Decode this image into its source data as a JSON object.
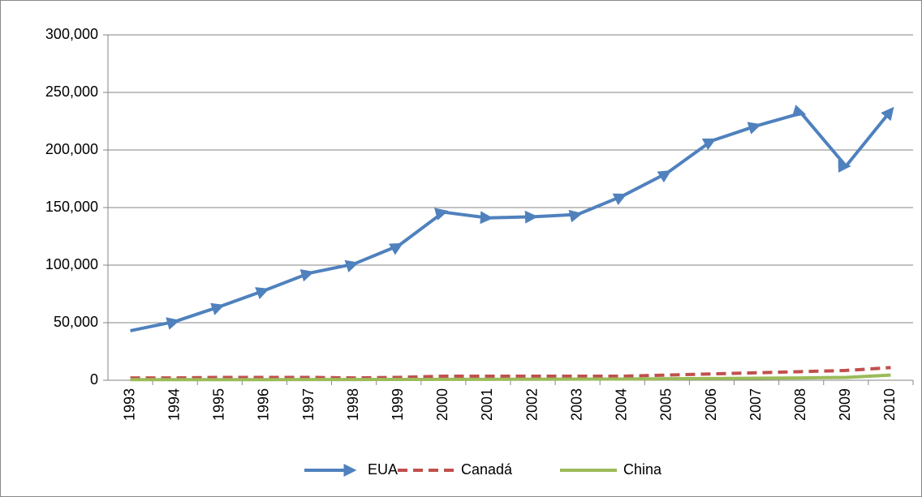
{
  "chart_data": {
    "type": "line",
    "categories": [
      "1993",
      "1994",
      "1995",
      "1996",
      "1997",
      "1998",
      "1999",
      "2000",
      "2001",
      "2002",
      "2003",
      "2004",
      "2005",
      "2006",
      "2007",
      "2008",
      "2009",
      "2010"
    ],
    "series": [
      {
        "name": "EUA",
        "color": "#4f81bd",
        "values": [
          43000,
          51000,
          64000,
          78000,
          93000,
          101000,
          117000,
          146000,
          141000,
          142000,
          144000,
          160000,
          180000,
          208000,
          221000,
          232000,
          186000,
          234000
        ]
      },
      {
        "name": "Canadá",
        "color": "#c0504d",
        "values": [
          2000,
          2000,
          2500,
          2500,
          2500,
          2000,
          2500,
          3500,
          3500,
          3500,
          3500,
          3500,
          4500,
          5500,
          6500,
          7500,
          8500,
          11000
        ]
      },
      {
        "name": "China",
        "color": "#9bbb59",
        "values": [
          500,
          500,
          500,
          500,
          600,
          600,
          700,
          800,
          800,
          900,
          1000,
          1100,
          1300,
          1500,
          1800,
          2000,
          2500,
          4500
        ]
      }
    ],
    "ylim": [
      0,
      300000
    ],
    "yticks": [
      0,
      {
        "value": 50000,
        "label": "50,000"
      },
      {
        "value": 100000,
        "label": "100,000"
      },
      {
        "value": 150000,
        "label": "150,000"
      },
      {
        "value": 200000,
        "label": "200,000"
      },
      {
        "value": 250000,
        "label": "250,000"
      },
      {
        "value": 300000,
        "label": "300,000"
      }
    ],
    "grid": true,
    "legend": "bottom"
  }
}
